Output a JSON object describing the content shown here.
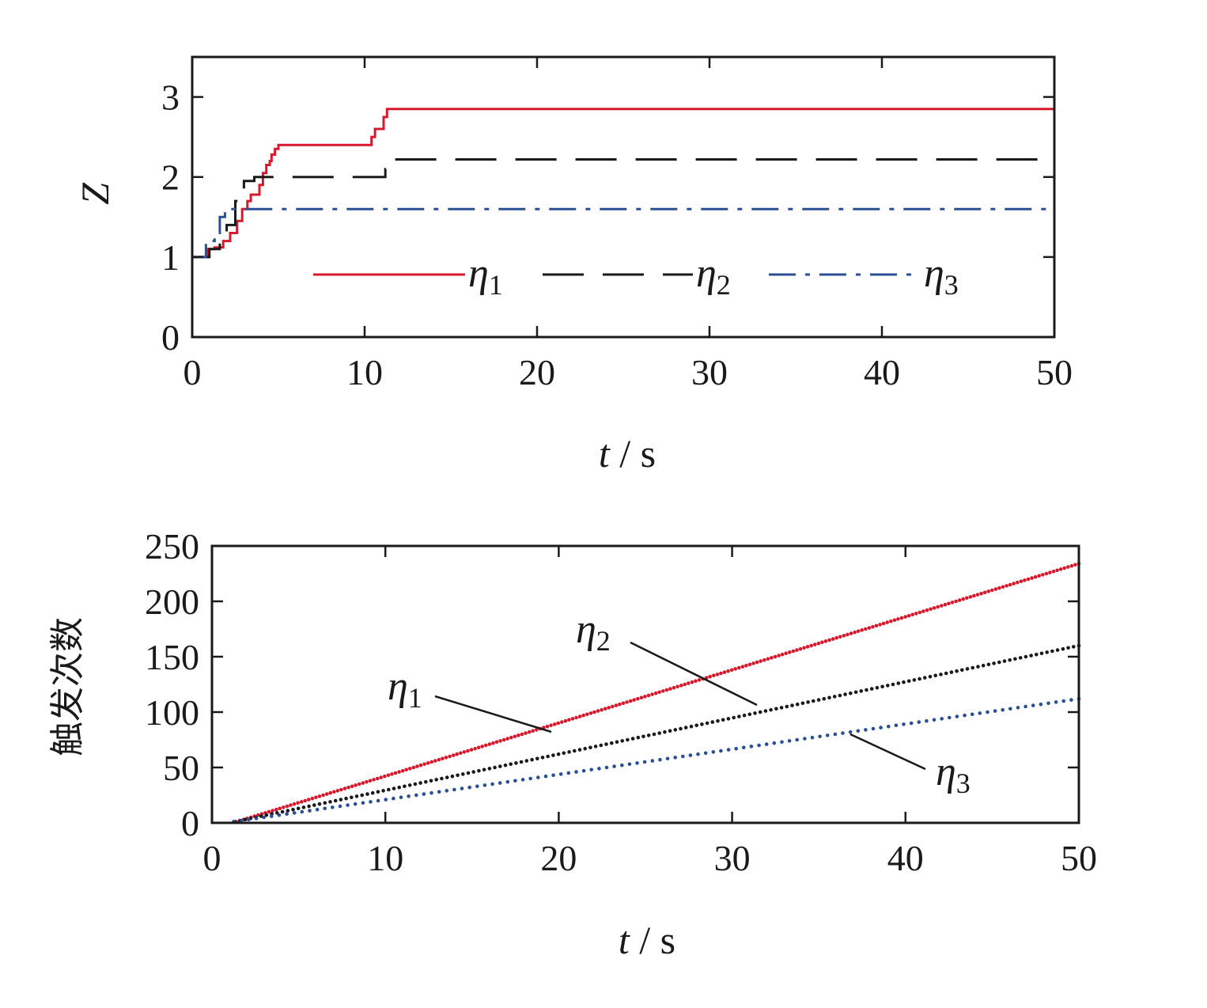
{
  "chart_data": [
    {
      "type": "line",
      "xlabel_var": "t",
      "xlabel_unit": " / s",
      "ylabel": "Z",
      "xlim": [
        0,
        50
      ],
      "ylim": [
        0,
        3.5
      ],
      "x_ticks": [
        0,
        10,
        20,
        30,
        40,
        50
      ],
      "y_ticks": [
        0,
        1,
        2,
        3
      ],
      "grid": false,
      "legend_position": "lower-center",
      "series": [
        {
          "name": "η",
          "subscript": "1",
          "color": "#d7192d",
          "dash": "solid",
          "x": [
            0,
            0.5,
            0.9,
            1.3,
            1.8,
            2.2,
            2.6,
            2.9,
            3.2,
            3.4,
            3.7,
            3.9,
            4.1,
            4.3,
            4.5,
            4.6,
            4.8,
            5.0,
            10.0,
            10.4,
            10.6,
            10.9,
            11.1,
            11.3,
            50
          ],
          "y": [
            1.0,
            1.0,
            1.1,
            1.12,
            1.2,
            1.3,
            1.45,
            1.6,
            1.7,
            1.78,
            1.78,
            1.9,
            2.05,
            2.15,
            2.2,
            2.28,
            2.35,
            2.4,
            2.4,
            2.5,
            2.6,
            2.6,
            2.75,
            2.85,
            2.85
          ]
        },
        {
          "name": "η",
          "subscript": "2",
          "color": "#1a1a1a",
          "dash": "long-dash",
          "x": [
            0,
            0.6,
            1.0,
            1.6,
            2.0,
            2.5,
            3.0,
            3.6,
            4.0,
            10.9,
            11.2,
            11.5,
            50
          ],
          "y": [
            1.0,
            1.0,
            1.1,
            1.25,
            1.4,
            1.7,
            1.95,
            2.0,
            2.0,
            2.0,
            2.1,
            2.22,
            2.22
          ]
        },
        {
          "name": "η",
          "subscript": "3",
          "color": "#2b4f94",
          "dash": "dash-dot",
          "x": [
            0,
            0.4,
            0.8,
            1.0,
            1.3,
            1.6,
            1.9,
            50
          ],
          "y": [
            1.0,
            1.0,
            1.15,
            1.2,
            1.3,
            1.5,
            1.6,
            1.6
          ]
        }
      ]
    },
    {
      "type": "scatter",
      "xlabel_var": "t",
      "xlabel_unit": " / s",
      "ylabel": "触发次数",
      "xlim": [
        0,
        50
      ],
      "ylim": [
        0,
        250
      ],
      "x_ticks": [
        0,
        10,
        20,
        30,
        40,
        50
      ],
      "y_ticks": [
        0,
        50,
        100,
        150,
        200,
        250
      ],
      "grid": false,
      "legend_position": "inline-annotations",
      "series": [
        {
          "name": "η",
          "subscript": "1",
          "color": "#d7192d",
          "slope": 4.7,
          "t0": 1.2,
          "count_end": 234
        },
        {
          "name": "η",
          "subscript": "2",
          "color": "#1a1a1a",
          "slope": 3.28,
          "t0": 1.0,
          "count_end": 160
        },
        {
          "name": "η",
          "subscript": "3",
          "color": "#2b4f94",
          "slope": 2.27,
          "t0": 0.8,
          "count_end": 112
        }
      ]
    }
  ]
}
